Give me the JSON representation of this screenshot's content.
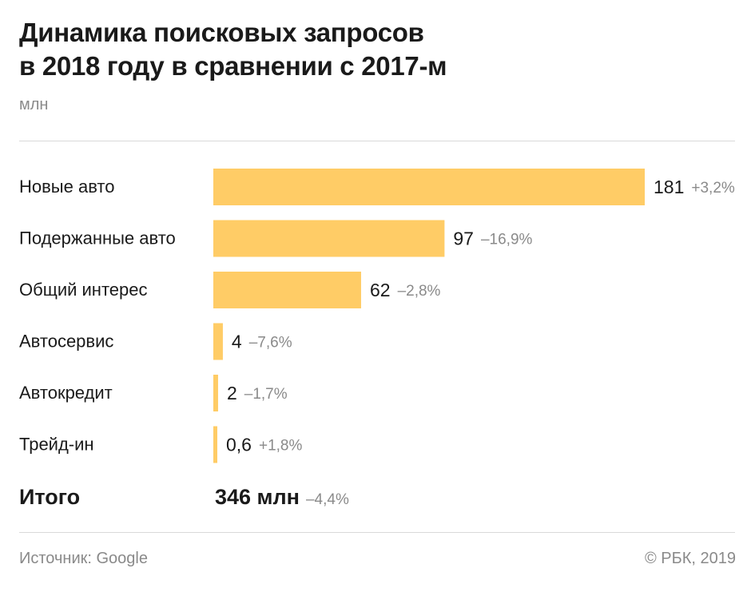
{
  "title_line1": "Динамика поисковых запросов",
  "title_line2": "в 2018 году в сравнении с 2017-м",
  "unit": "млн",
  "source": "Источник: Google",
  "copyright": "© РБК, 2019",
  "colors": {
    "bar": "#ffcc66",
    "text": "#1a1a1a",
    "muted": "#8a8a8a",
    "rule": "#d9d9d9"
  },
  "chart_data": {
    "type": "bar",
    "orientation": "horizontal",
    "categories": [
      "Новые авто",
      "Подержанные авто",
      "Общий интерес",
      "Автосервис",
      "Автокредит",
      "Трейд-ин"
    ],
    "values": [
      181,
      97,
      62,
      4,
      2,
      0.6
    ],
    "value_labels": [
      "181",
      "97",
      "62",
      "4",
      "2",
      "0,6"
    ],
    "changes": [
      "+3,2%",
      "–16,9%",
      "–2,8%",
      "–7,6%",
      "–1,7%",
      "+1,8%"
    ],
    "total": {
      "label": "Итого",
      "value": 346,
      "value_label": "346 млн",
      "change": "–4,4%"
    },
    "title": "Динамика поисковых запросов в 2018 году в сравнении с 2017-м",
    "ylabel": "млн",
    "xlim": [
      0,
      181
    ]
  }
}
